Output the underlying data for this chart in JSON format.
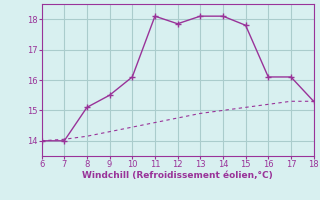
{
  "xlabel": "Windchill (Refroidissement éolien,°C)",
  "xlim": [
    6,
    18
  ],
  "ylim": [
    13.5,
    18.5
  ],
  "yticks": [
    14,
    15,
    16,
    17,
    18
  ],
  "xticks": [
    6,
    7,
    8,
    9,
    10,
    11,
    12,
    13,
    14,
    15,
    16,
    17,
    18
  ],
  "bg_color": "#d8f0f0",
  "line_color": "#993399",
  "grid_color": "#aacccc",
  "line1_x": [
    6,
    7,
    8,
    9,
    10,
    11,
    12,
    13,
    14,
    15,
    16,
    17,
    18
  ],
  "line1_y": [
    14.0,
    14.0,
    15.1,
    15.5,
    16.1,
    18.1,
    17.85,
    18.1,
    18.1,
    17.8,
    16.1,
    16.1,
    15.3
  ],
  "line2_x": [
    6,
    7,
    8,
    9,
    10,
    11,
    12,
    13,
    14,
    15,
    16,
    17,
    18
  ],
  "line2_y": [
    14.0,
    14.05,
    14.15,
    14.3,
    14.45,
    14.6,
    14.75,
    14.9,
    15.0,
    15.1,
    15.2,
    15.3,
    15.3
  ]
}
